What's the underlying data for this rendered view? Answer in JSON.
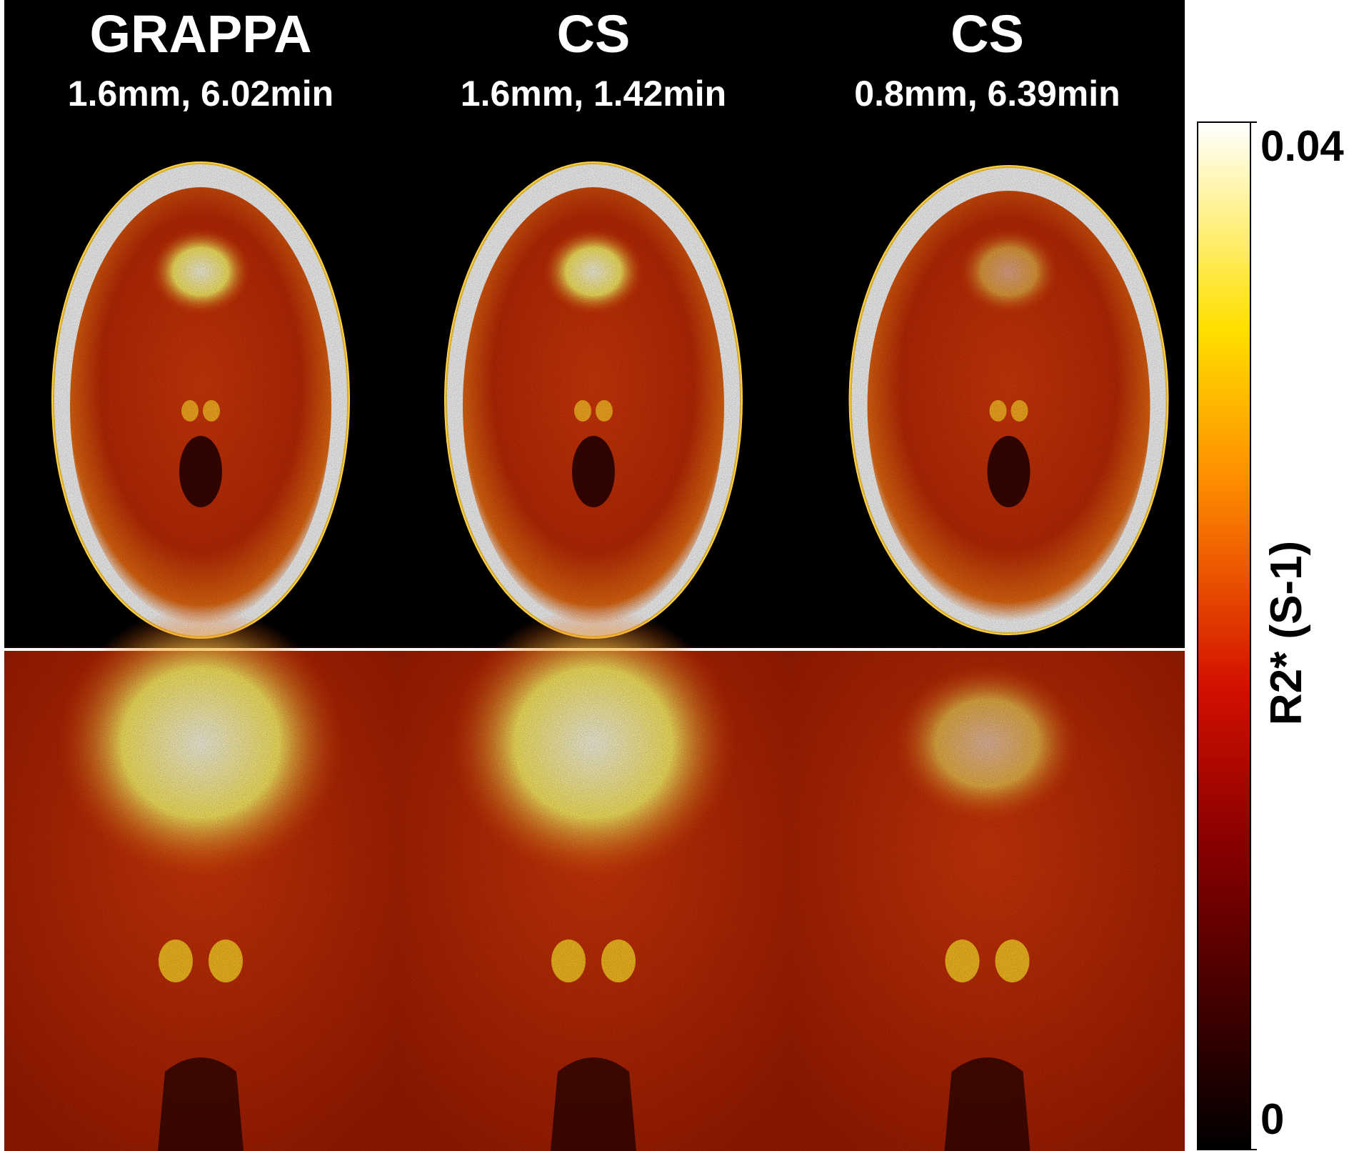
{
  "columns": [
    {
      "title": "GRAPPA",
      "subtitle": "1.6mm, 6.02min"
    },
    {
      "title": "CS",
      "subtitle": "1.6mm, 1.42min"
    },
    {
      "title": "CS",
      "subtitle": "0.8mm, 6.39min"
    }
  ],
  "colorbar": {
    "label": "R2* (S-1)",
    "range": [
      0,
      0.04
    ],
    "ticks": [
      0,
      0.04
    ]
  }
}
